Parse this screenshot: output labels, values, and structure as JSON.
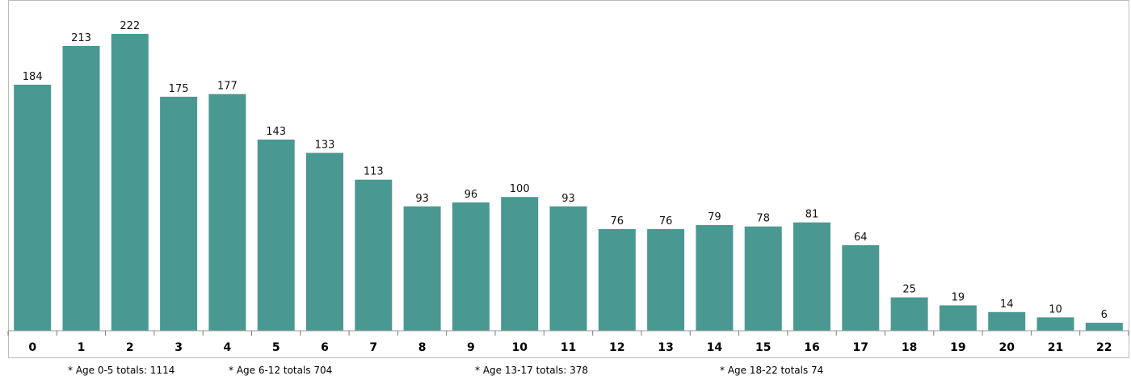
{
  "chart_data": {
    "type": "bar",
    "categories": [
      "0",
      "1",
      "2",
      "3",
      "4",
      "5",
      "6",
      "7",
      "8",
      "9",
      "10",
      "11",
      "12",
      "13",
      "14",
      "15",
      "16",
      "17",
      "18",
      "19",
      "20",
      "21",
      "22"
    ],
    "values": [
      184,
      213,
      222,
      175,
      177,
      143,
      133,
      113,
      93,
      96,
      100,
      93,
      76,
      76,
      79,
      78,
      81,
      64,
      25,
      19,
      14,
      10,
      6
    ],
    "title": "",
    "xlabel": "",
    "ylabel": "",
    "ylim": [
      0,
      222
    ],
    "bar_color": "#4a9892",
    "grid": false,
    "legend": "none",
    "data_labels": true
  },
  "footnotes": [
    "* Age 0-5 totals: 1114",
    "* Age 6-12 totals 704",
    "* Age 13-17 totals: 378",
    "* Age 18-22 totals 74"
  ]
}
